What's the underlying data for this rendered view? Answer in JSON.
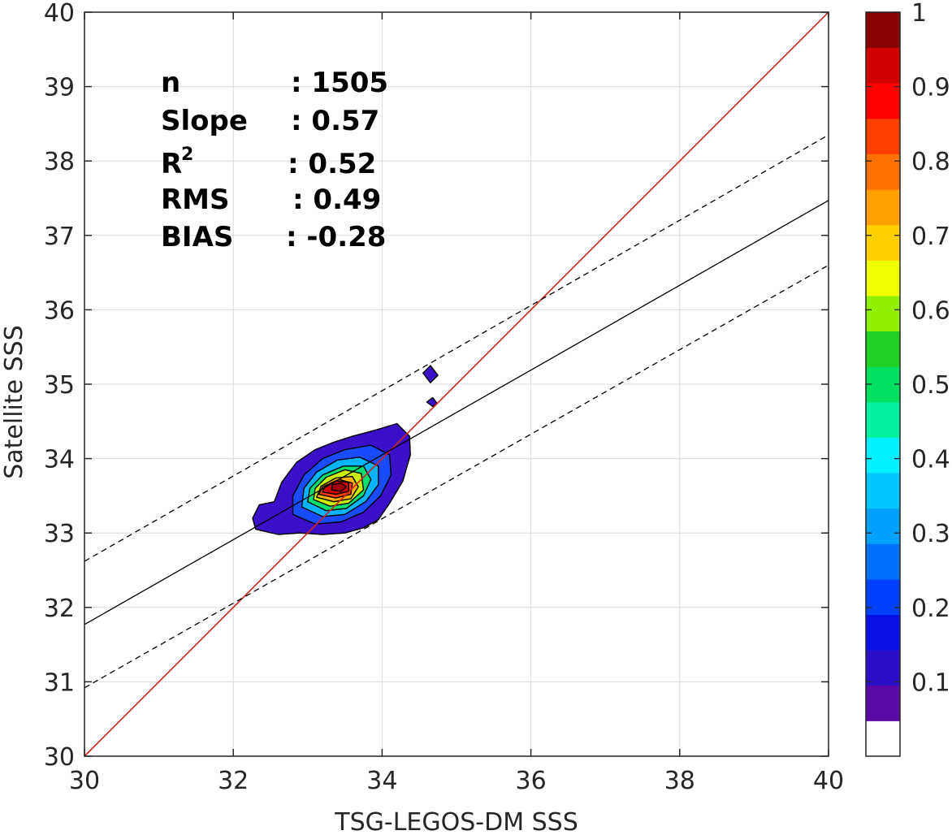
{
  "chart_data": {
    "type": "filled-contour-scatter-density",
    "title": "",
    "xlabel": "TSG-LEGOS-DM SSS",
    "ylabel": "Satellite SSS",
    "xlim": [
      30,
      40
    ],
    "ylim": [
      30,
      40
    ],
    "xticks": [
      "30",
      "32",
      "34",
      "36",
      "38",
      "40"
    ],
    "yticks": [
      "30",
      "31",
      "32",
      "33",
      "34",
      "35",
      "36",
      "37",
      "38",
      "39",
      "40"
    ],
    "grid": true,
    "stats": [
      {
        "name": "n",
        "value": ": 1505"
      },
      {
        "name": "Slope",
        "value": ": 0.57"
      },
      {
        "name": "R",
        "sup": "2",
        "value": ": 0.52"
      },
      {
        "name": "RMS",
        "value": ": 0.49"
      },
      {
        "name": "BIAS",
        "value": ": -0.28"
      }
    ],
    "lines": [
      {
        "id": "one-to-one",
        "style": "solid",
        "color": "#d62020",
        "points": [
          [
            30,
            30
          ],
          [
            40,
            40
          ]
        ]
      },
      {
        "id": "regression",
        "style": "solid",
        "color": "#000000",
        "points": [
          [
            30,
            31.77
          ],
          [
            40,
            37.47
          ]
        ]
      },
      {
        "id": "regression-upper",
        "style": "dashed",
        "color": "#000000",
        "points": [
          [
            30,
            32.62
          ],
          [
            40,
            38.35
          ]
        ]
      },
      {
        "id": "regression-lower",
        "style": "dashed",
        "color": "#000000",
        "points": [
          [
            30,
            30.92
          ],
          [
            40,
            36.6
          ]
        ]
      }
    ],
    "density_levels": [
      {
        "level": 0.05,
        "color": "#3a10c8",
        "polygon": [
          [
            32.3,
            33.05
          ],
          [
            32.6,
            32.98
          ],
          [
            32.9,
            33.0
          ],
          [
            33.2,
            32.98
          ],
          [
            33.5,
            33.0
          ],
          [
            33.75,
            33.07
          ],
          [
            33.95,
            33.18
          ],
          [
            34.1,
            33.4
          ],
          [
            34.28,
            33.7
          ],
          [
            34.38,
            34.05
          ],
          [
            34.37,
            34.3
          ],
          [
            34.2,
            34.47
          ],
          [
            33.9,
            34.38
          ],
          [
            33.6,
            34.3
          ],
          [
            33.35,
            34.22
          ],
          [
            33.1,
            34.12
          ],
          [
            32.85,
            33.95
          ],
          [
            32.65,
            33.68
          ],
          [
            32.55,
            33.42
          ],
          [
            32.35,
            33.38
          ],
          [
            32.26,
            33.2
          ]
        ]
      },
      {
        "level": 0.2,
        "color": "#1a4cff",
        "polygon": [
          [
            32.8,
            33.25
          ],
          [
            33.1,
            33.12
          ],
          [
            33.45,
            33.15
          ],
          [
            33.75,
            33.28
          ],
          [
            33.98,
            33.5
          ],
          [
            34.12,
            33.78
          ],
          [
            34.1,
            34.05
          ],
          [
            33.85,
            34.18
          ],
          [
            33.5,
            34.12
          ],
          [
            33.2,
            34.0
          ],
          [
            32.95,
            33.78
          ],
          [
            32.8,
            33.5
          ]
        ]
      },
      {
        "level": 0.35,
        "color": "#00b4ff",
        "polygon": [
          [
            32.92,
            33.35
          ],
          [
            33.2,
            33.22
          ],
          [
            33.5,
            33.25
          ],
          [
            33.78,
            33.42
          ],
          [
            33.95,
            33.65
          ],
          [
            33.95,
            33.9
          ],
          [
            33.7,
            34.02
          ],
          [
            33.4,
            33.98
          ],
          [
            33.12,
            33.82
          ],
          [
            32.95,
            33.6
          ]
        ]
      },
      {
        "level": 0.5,
        "color": "#00e070",
        "polygon": [
          [
            33.0,
            33.42
          ],
          [
            33.25,
            33.3
          ],
          [
            33.52,
            33.33
          ],
          [
            33.75,
            33.5
          ],
          [
            33.85,
            33.72
          ],
          [
            33.75,
            33.9
          ],
          [
            33.48,
            33.9
          ],
          [
            33.2,
            33.78
          ],
          [
            33.03,
            33.6
          ]
        ]
      },
      {
        "level": 0.6,
        "color": "#c8f000",
        "polygon": [
          [
            33.08,
            33.45
          ],
          [
            33.3,
            33.36
          ],
          [
            33.55,
            33.4
          ],
          [
            33.75,
            33.58
          ],
          [
            33.72,
            33.8
          ],
          [
            33.5,
            33.85
          ],
          [
            33.25,
            33.75
          ],
          [
            33.1,
            33.6
          ]
        ]
      },
      {
        "level": 0.7,
        "color": "#ffb000",
        "polygon": [
          [
            33.12,
            33.48
          ],
          [
            33.35,
            33.42
          ],
          [
            33.58,
            33.46
          ],
          [
            33.68,
            33.62
          ],
          [
            33.6,
            33.76
          ],
          [
            33.38,
            33.74
          ],
          [
            33.18,
            33.63
          ]
        ]
      },
      {
        "level": 0.8,
        "color": "#ff4000",
        "polygon": [
          [
            33.15,
            33.52
          ],
          [
            33.38,
            33.47
          ],
          [
            33.58,
            33.52
          ],
          [
            33.6,
            33.67
          ],
          [
            33.42,
            33.72
          ],
          [
            33.2,
            33.62
          ]
        ]
      },
      {
        "level": 0.9,
        "color": "#d00000",
        "polygon": [
          [
            33.2,
            33.55
          ],
          [
            33.38,
            33.52
          ],
          [
            33.55,
            33.56
          ],
          [
            33.55,
            33.68
          ],
          [
            33.38,
            33.7
          ],
          [
            33.23,
            33.63
          ]
        ]
      },
      {
        "level": 0.95,
        "color": "#a00000",
        "polygon": [
          [
            33.32,
            33.58
          ],
          [
            33.45,
            33.56
          ],
          [
            33.52,
            33.62
          ],
          [
            33.45,
            33.67
          ],
          [
            33.33,
            33.65
          ]
        ]
      }
    ],
    "outliers": [
      {
        "level": 0.05,
        "color": "#3a10c8",
        "polygon": [
          [
            34.55,
            35.15
          ],
          [
            34.65,
            35.25
          ],
          [
            34.75,
            35.12
          ],
          [
            34.65,
            35.02
          ]
        ]
      },
      {
        "level": 0.05,
        "color": "#3a10c8",
        "polygon": [
          [
            34.6,
            34.76
          ],
          [
            34.68,
            34.82
          ],
          [
            34.74,
            34.74
          ],
          [
            34.68,
            34.7
          ]
        ]
      }
    ],
    "colorbar": {
      "ticks": [
        "0.1",
        "0.2",
        "0.3",
        "0.4",
        "0.5",
        "0.6",
        "0.7",
        "0.8",
        "0.9",
        "1"
      ],
      "range": [
        0,
        1
      ],
      "colors": [
        "#ffffff",
        "#5a0aa6",
        "#2b10c8",
        "#0a10e8",
        "#0040ff",
        "#0070ff",
        "#00a0ff",
        "#00c8ff",
        "#00f0ff",
        "#00f0a0",
        "#00e060",
        "#20d020",
        "#90f000",
        "#f0ff00",
        "#ffd000",
        "#ffa000",
        "#ff7000",
        "#ff4000",
        "#ff0000",
        "#d00000",
        "#8b0000"
      ]
    }
  }
}
